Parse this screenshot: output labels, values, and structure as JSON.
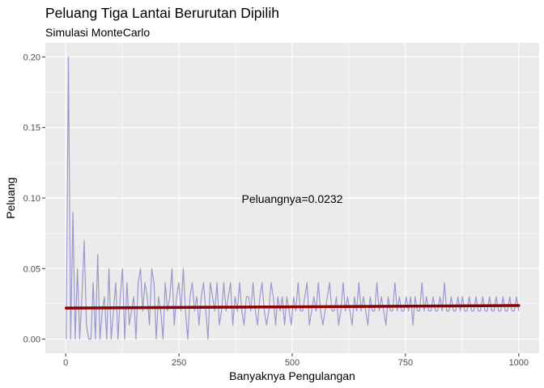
{
  "chart_data": {
    "type": "line",
    "title": "Peluang Tiga Lantai Berurutan Dipilih",
    "subtitle": "Simulasi MonteCarlo",
    "xlabel": "Banyaknya Pengulangan",
    "ylabel": "Peluang",
    "xlim": [
      -45,
      1045
    ],
    "ylim": [
      -0.01,
      0.21
    ],
    "x_ticks": [
      0,
      250,
      500,
      750,
      1000
    ],
    "x_tick_labels": [
      "0",
      "250",
      "500",
      "750",
      "1000"
    ],
    "y_ticks": [
      0.0,
      0.05,
      0.1,
      0.15,
      0.2
    ],
    "y_tick_labels": [
      "0.00",
      "0.05",
      "0.10",
      "0.15",
      "0.20"
    ],
    "grid": true,
    "annotation": {
      "text": "Peluangnya=0.0232",
      "x": 500,
      "y": 0.0995
    },
    "series": [
      {
        "color": "#9a98cf",
        "x_from": 1,
        "x_to": 1000,
        "values_sampled_every_5": [
          0.0,
          0.2,
          0.0,
          0.09,
          0.0,
          0.05,
          0.0,
          0.03,
          0.07,
          0.01,
          0.0,
          0.0,
          0.04,
          0.0,
          0.06,
          0.0,
          0.02,
          0.03,
          0.0,
          0.05,
          0.0,
          0.02,
          0.04,
          0.0,
          0.03,
          0.05,
          0.0,
          0.04,
          0.01,
          0.02,
          0.03,
          0.0,
          0.04,
          0.05,
          0.02,
          0.04,
          0.03,
          0.01,
          0.05,
          0.04,
          0.0,
          0.03,
          0.02,
          0.0,
          0.04,
          0.02,
          0.03,
          0.05,
          0.01,
          0.03,
          0.04,
          0.02,
          0.05,
          0.02,
          0.0,
          0.03,
          0.04,
          0.02,
          0.03,
          0.01,
          0.03,
          0.04,
          0.02,
          0.0,
          0.04,
          0.03,
          0.02,
          0.04,
          0.01,
          0.02,
          0.04,
          0.02,
          0.03,
          0.04,
          0.01,
          0.03,
          0.02,
          0.04,
          0.02,
          0.01,
          0.03,
          0.03,
          0.02,
          0.04,
          0.02,
          0.01,
          0.03,
          0.04,
          0.02,
          0.01,
          0.02,
          0.04,
          0.03,
          0.01,
          0.03,
          0.02,
          0.03,
          0.01,
          0.03,
          0.02,
          0.01,
          0.03,
          0.02,
          0.04,
          0.02,
          0.02,
          0.03,
          0.04,
          0.01,
          0.02,
          0.03,
          0.02,
          0.04,
          0.02,
          0.01,
          0.02,
          0.03,
          0.04,
          0.02,
          0.02,
          0.03,
          0.01,
          0.02,
          0.04,
          0.02,
          0.03,
          0.02,
          0.01,
          0.03,
          0.02,
          0.04,
          0.02,
          0.03,
          0.02,
          0.01,
          0.03,
          0.02,
          0.02,
          0.04,
          0.02,
          0.03,
          0.02,
          0.01,
          0.03,
          0.02,
          0.02,
          0.04,
          0.02,
          0.03,
          0.02,
          0.02,
          0.03,
          0.02,
          0.03,
          0.01,
          0.03,
          0.02,
          0.02,
          0.04,
          0.02,
          0.03,
          0.02,
          0.02,
          0.03,
          0.02,
          0.02,
          0.03,
          0.02,
          0.04,
          0.02,
          0.02,
          0.03,
          0.02,
          0.02,
          0.03,
          0.02,
          0.03,
          0.02,
          0.02,
          0.03,
          0.02,
          0.02,
          0.03,
          0.02,
          0.02,
          0.03,
          0.02,
          0.02,
          0.03,
          0.02,
          0.02,
          0.03,
          0.02,
          0.02,
          0.03,
          0.02,
          0.02,
          0.03,
          0.02,
          0.02,
          0.03,
          0.02
        ]
      },
      {
        "color": "#8b0000",
        "x": [
          1,
          1000
        ],
        "values": [
          0.022,
          0.0238
        ]
      }
    ]
  }
}
